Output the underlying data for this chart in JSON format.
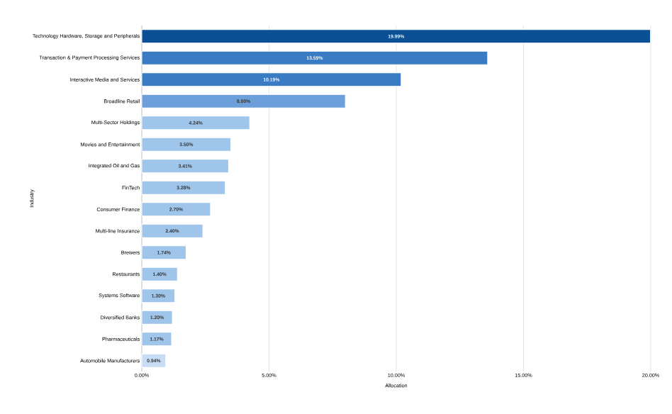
{
  "chart_data": {
    "type": "bar",
    "orientation": "horizontal",
    "xlabel": "Allocation",
    "ylabel": "Industry",
    "categories": [
      "Technology Hardware, Storage and Peripherals",
      "Transaction & Payment Processing Services",
      "Interactive Media and Services",
      "Broadline Retail",
      "Multi-Sector Holdings",
      "Movies and Entertainment",
      "Integrated Oil and Gas",
      "FinTech",
      "Consumer Finance",
      "Multi-line Insurance",
      "Brewers",
      "Restaurants",
      "Systems Software",
      "Diversified Banks",
      "Pharmaceuticals",
      "Automobile Manufacturers"
    ],
    "values": [
      19.99,
      13.59,
      10.19,
      8.0,
      4.24,
      3.5,
      3.41,
      3.28,
      2.7,
      2.4,
      1.74,
      1.4,
      1.3,
      1.2,
      1.17,
      0.94
    ],
    "value_labels": [
      "19.99%",
      "13.59%",
      "10.19%",
      "8.00%",
      "4.24%",
      "3.50%",
      "3.41%",
      "3.28%",
      "2.70%",
      "2.40%",
      "1.74%",
      "1.40%",
      "1.30%",
      "1.20%",
      "1.17%",
      "0.94%"
    ],
    "colors": [
      "#0b4f95",
      "#3a7cc4",
      "#3a7cc4",
      "#6d9fda",
      "#9fc5ea",
      "#9fc5ea",
      "#9fc5ea",
      "#9fc5ea",
      "#9fc5ea",
      "#9fc5ea",
      "#9fc5ea",
      "#9fc5ea",
      "#9fc5ea",
      "#9fc5ea",
      "#9fc5ea",
      "#c6ddf4"
    ],
    "xlim": [
      0,
      20
    ],
    "xticks": [
      {
        "value": 0,
        "label": "0.00%"
      },
      {
        "value": 5,
        "label": "5.00%"
      },
      {
        "value": 10,
        "label": "10.00%"
      },
      {
        "value": 15,
        "label": "15.00%"
      },
      {
        "value": 20,
        "label": "20.00%"
      }
    ],
    "grid": "x"
  }
}
